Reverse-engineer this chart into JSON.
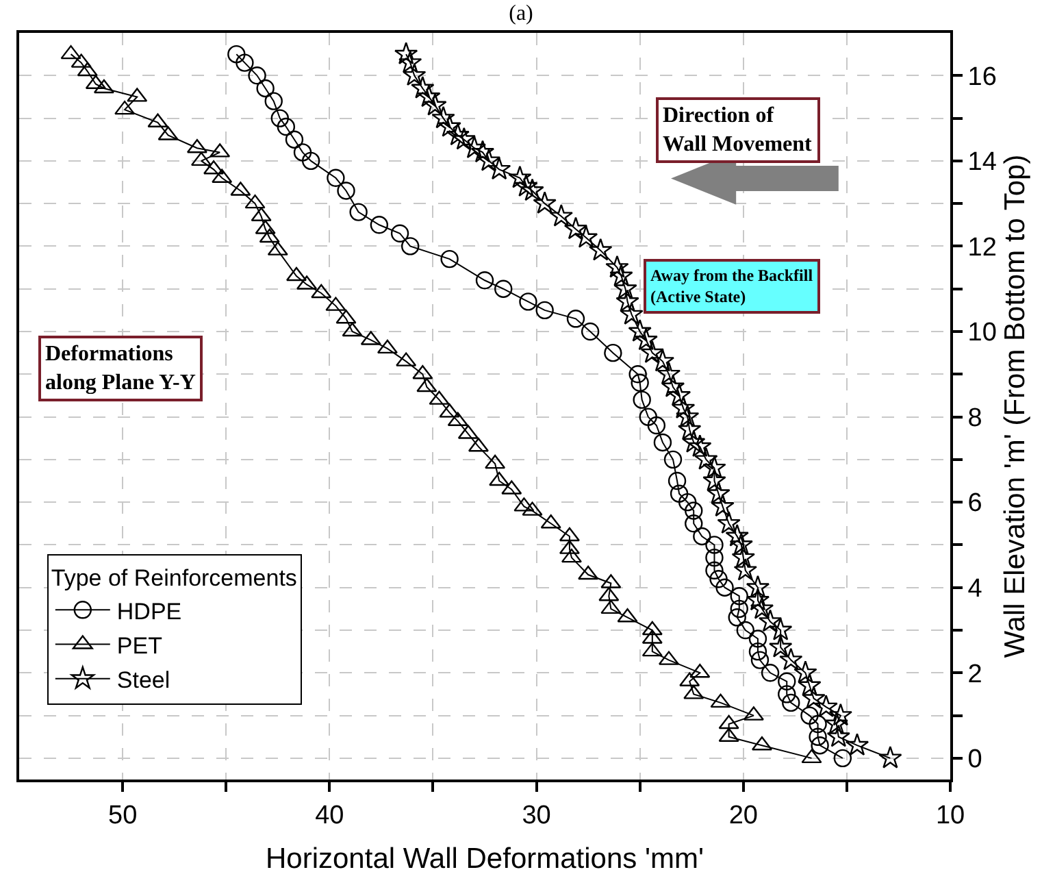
{
  "chart_data": {
    "type": "line",
    "title": "(a)",
    "xlabel": "Horizontal Wall Deformations 'mm'",
    "ylabel": "Wall Elevation 'm' (From Bottom to Top)",
    "legend_title": "Type of Reinforcements",
    "legend": "bottom left",
    "grid": true,
    "line_style": "solid",
    "xlim": [
      55,
      10
    ],
    "ylim": [
      -0.5,
      17
    ],
    "xticks": [
      50,
      {
        "value": 45,
        "label": null
      },
      40,
      {
        "value": 35,
        "label": null
      },
      30,
      {
        "value": 25,
        "label": null
      },
      20,
      {
        "value": 15,
        "label": null
      },
      10
    ],
    "yticks": [
      0,
      {
        "value": 1,
        "label": null
      },
      2,
      {
        "value": 3,
        "label": null
      },
      4,
      {
        "value": 5,
        "label": null
      },
      6,
      {
        "value": 7,
        "label": null
      },
      8,
      {
        "value": 9,
        "label": null
      },
      10,
      {
        "value": 11,
        "label": null
      },
      12,
      {
        "value": 13,
        "label": null
      },
      14,
      {
        "value": 15,
        "label": null
      },
      16
    ],
    "annotations": [
      "Direction of\nWall Movement",
      "Away from the Backfill\n(Active State)",
      "Deformations\nalong Plane Y-Y"
    ],
    "series": [
      {
        "name": "HDPE",
        "color": "#000000",
        "marker": "circle",
        "x": [
          44.5,
          44.1,
          43.5,
          43.1,
          42.7,
          42.4,
          42.1,
          41.7,
          41.3,
          40.9,
          39.7,
          39.2,
          38.6,
          37.6,
          36.6,
          36.1,
          34.2,
          32.5,
          31.6,
          30.4,
          29.6,
          28.1,
          27.4,
          26.3,
          25.1,
          25.0,
          24.9,
          24.6,
          24.2,
          23.9,
          23.4,
          23.2,
          23.1,
          22.7,
          22.4,
          22.4,
          22.0,
          21.4,
          21.4,
          21.4,
          21.2,
          20.9,
          20.2,
          20.2,
          20.3,
          19.9,
          19.3,
          19.3,
          19.2,
          18.7,
          17.9,
          17.9,
          17.7,
          16.8,
          16.4,
          16.4,
          16.3,
          15.2
        ],
        "values": [
          16.5,
          16.3,
          16.0,
          15.7,
          15.4,
          15.0,
          14.8,
          14.5,
          14.2,
          14.0,
          13.6,
          13.3,
          12.8,
          12.5,
          12.3,
          12.0,
          11.7,
          11.2,
          11.0,
          10.7,
          10.5,
          10.3,
          10.0,
          9.5,
          9.0,
          8.8,
          8.4,
          8.0,
          7.8,
          7.4,
          7.0,
          6.5,
          6.2,
          6.0,
          5.8,
          5.5,
          5.2,
          5.0,
          4.7,
          4.4,
          4.2,
          4.0,
          3.8,
          3.5,
          3.3,
          3.0,
          2.8,
          2.5,
          2.3,
          2.0,
          1.8,
          1.5,
          1.3,
          1.0,
          0.8,
          0.5,
          0.3,
          0.0
        ]
      },
      {
        "name": "PET",
        "color": "#000000",
        "marker": "triangle",
        "x": [
          52.5,
          52.0,
          51.7,
          51.3,
          50.9,
          49.3,
          49.9,
          48.3,
          47.8,
          46.4,
          45.3,
          46.2,
          45.6,
          45.2,
          44.3,
          43.6,
          43.3,
          43.1,
          42.9,
          42.5,
          41.6,
          41.1,
          40.4,
          39.7,
          39.2,
          38.9,
          38.0,
          37.2,
          36.3,
          35.5,
          35.3,
          34.7,
          34.2,
          33.8,
          33.3,
          32.8,
          32.0,
          31.8,
          31.2,
          30.6,
          30.2,
          29.3,
          28.4,
          28.4,
          28.3,
          27.5,
          26.4,
          26.5,
          26.4,
          25.6,
          24.4,
          24.4,
          24.4,
          23.6,
          22.1,
          22.6,
          22.4,
          21.1,
          19.5,
          20.7,
          20.7,
          19.1,
          16.7
        ],
        "values": [
          16.5,
          16.3,
          16.1,
          15.8,
          15.7,
          15.5,
          15.2,
          14.9,
          14.6,
          14.3,
          14.2,
          14.0,
          13.8,
          13.6,
          13.3,
          13.0,
          12.7,
          12.4,
          12.2,
          11.9,
          11.3,
          11.1,
          10.9,
          10.6,
          10.3,
          10.0,
          9.8,
          9.6,
          9.3,
          9.0,
          8.7,
          8.4,
          8.1,
          7.9,
          7.6,
          7.3,
          6.9,
          6.5,
          6.3,
          5.9,
          5.8,
          5.5,
          5.2,
          4.9,
          4.7,
          4.3,
          4.1,
          3.8,
          3.5,
          3.3,
          3.0,
          2.8,
          2.5,
          2.3,
          2.0,
          1.8,
          1.5,
          1.3,
          1.0,
          0.8,
          0.5,
          0.3,
          0.0
        ]
      },
      {
        "name": "Steel",
        "color": "#000000",
        "marker": "star",
        "x": [
          36.3,
          36.1,
          35.9,
          35.5,
          35.2,
          34.9,
          34.5,
          34.2,
          33.8,
          33.5,
          33.0,
          32.6,
          32.3,
          31.8,
          30.8,
          30.5,
          30.2,
          29.6,
          28.8,
          28.1,
          27.6,
          26.9,
          26.1,
          25.9,
          25.7,
          25.6,
          25.4,
          25.0,
          24.7,
          24.4,
          23.9,
          23.6,
          23.4,
          23.1,
          22.9,
          22.7,
          22.6,
          22.4,
          22.1,
          21.8,
          21.4,
          21.4,
          21.2,
          21.0,
          20.7,
          20.3,
          20.1,
          20.0,
          19.9,
          19.3,
          19.3,
          19.1,
          18.7,
          18.2,
          18.2,
          17.7,
          17.0,
          16.8,
          16.6,
          16.0,
          15.3,
          15.5,
          15.4,
          14.5,
          12.9
        ],
        "values": [
          16.5,
          16.3,
          16.0,
          15.7,
          15.5,
          15.3,
          15.0,
          14.8,
          14.6,
          14.5,
          14.3,
          14.2,
          14.0,
          13.8,
          13.6,
          13.4,
          13.3,
          13.0,
          12.7,
          12.4,
          12.2,
          11.9,
          11.5,
          11.3,
          11.0,
          10.7,
          10.4,
          10.0,
          9.8,
          9.5,
          9.3,
          9.0,
          8.7,
          8.5,
          8.2,
          8.0,
          7.7,
          7.4,
          7.3,
          7.0,
          6.8,
          6.5,
          6.2,
          5.9,
          5.5,
          5.2,
          5.0,
          4.7,
          4.4,
          4.0,
          3.7,
          3.5,
          3.2,
          3.0,
          2.6,
          2.3,
          2.0,
          1.7,
          1.4,
          1.2,
          1.0,
          0.8,
          0.5,
          0.3,
          0.0
        ]
      }
    ]
  }
}
